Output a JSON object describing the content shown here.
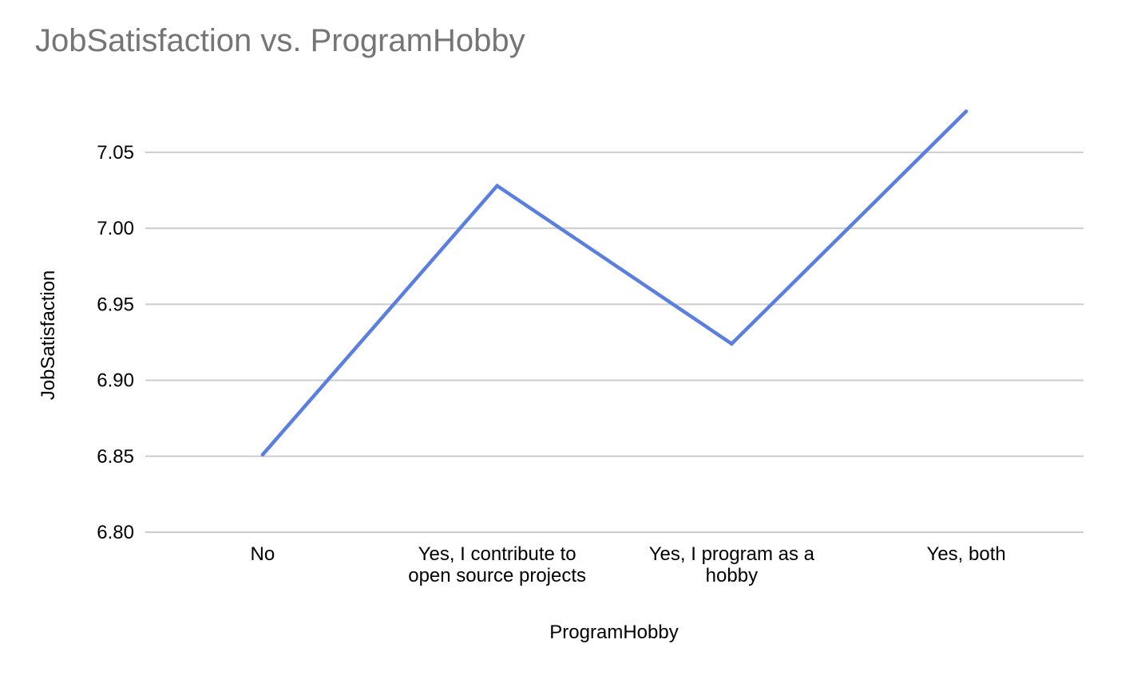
{
  "chart_data": {
    "type": "line",
    "title": "JobSatisfaction vs. ProgramHobby",
    "xlabel": "ProgramHobby",
    "ylabel": "JobSatisfaction",
    "categories": [
      "No",
      "Yes, I contribute to open source projects",
      "Yes, I program as a hobby",
      "Yes, both"
    ],
    "category_lines": [
      [
        "No"
      ],
      [
        "Yes, I contribute to",
        "open source projects"
      ],
      [
        "Yes, I program as a",
        "hobby"
      ],
      [
        "Yes, both"
      ]
    ],
    "series": [
      {
        "values": [
          6.851,
          7.028,
          6.924,
          7.077
        ],
        "color": "#5b7fe0"
      }
    ],
    "ylim": [
      6.8,
      7.082
    ],
    "yticks": [
      6.8,
      6.85,
      6.9,
      6.95,
      7.0,
      7.05
    ],
    "ytick_labels": [
      "6.80",
      "6.85",
      "6.90",
      "6.95",
      "7.00",
      "7.05"
    ],
    "grid": true,
    "legend": "none"
  }
}
